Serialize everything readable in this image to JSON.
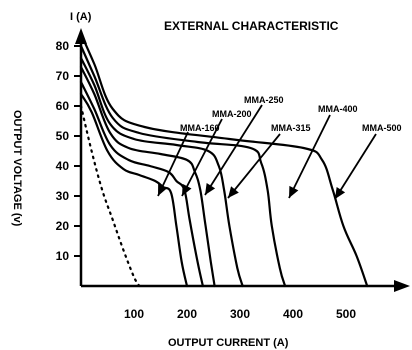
{
  "chart_data": {
    "type": "line",
    "title": "EXTERNAL CHARACTERISTIC",
    "y_axis_unit_label": "I (A)",
    "xlabel": "OUTPUT CURRENT (A)",
    "ylabel": "OUTPUT VOLTAGE (v)",
    "xlim": [
      0,
      600
    ],
    "ylim": [
      0,
      85
    ],
    "x_ticks": [
      100,
      200,
      300,
      400,
      500
    ],
    "y_ticks": [
      10,
      20,
      30,
      40,
      50,
      60,
      70,
      80
    ],
    "grid": false,
    "series": [
      {
        "name": "MMA-160",
        "points": [
          [
            0,
            64
          ],
          [
            20,
            58
          ],
          [
            50,
            45
          ],
          [
            80,
            39
          ],
          [
            110,
            37
          ],
          [
            140,
            35
          ],
          [
            155,
            33
          ],
          [
            170,
            31
          ],
          [
            180,
            20
          ],
          [
            190,
            8
          ],
          [
            200,
            0
          ]
        ]
      },
      {
        "name": "MMA-200",
        "points": [
          [
            0,
            68
          ],
          [
            25,
            59
          ],
          [
            55,
            47
          ],
          [
            90,
            42
          ],
          [
            130,
            40
          ],
          [
            165,
            38
          ],
          [
            180,
            35
          ],
          [
            195,
            32
          ],
          [
            205,
            22
          ],
          [
            220,
            8
          ],
          [
            230,
            0
          ]
        ]
      },
      {
        "name": "MMA-250",
        "points": [
          [
            0,
            73
          ],
          [
            25,
            64
          ],
          [
            55,
            51
          ],
          [
            90,
            46
          ],
          [
            150,
            44
          ],
          [
            200,
            42
          ],
          [
            215,
            38
          ],
          [
            225,
            32
          ],
          [
            235,
            20
          ],
          [
            245,
            8
          ],
          [
            252,
            0
          ]
        ]
      },
      {
        "name": "MMA-315",
        "points": [
          [
            0,
            76
          ],
          [
            25,
            67
          ],
          [
            55,
            54
          ],
          [
            100,
            49
          ],
          [
            180,
            47
          ],
          [
            240,
            45
          ],
          [
            260,
            40
          ],
          [
            270,
            32
          ],
          [
            280,
            20
          ],
          [
            295,
            6
          ],
          [
            305,
            0
          ]
        ]
      },
      {
        "name": "MMA-400",
        "points": [
          [
            0,
            80
          ],
          [
            25,
            70
          ],
          [
            60,
            56
          ],
          [
            110,
            51
          ],
          [
            220,
            48
          ],
          [
            320,
            46
          ],
          [
            340,
            41
          ],
          [
            352,
            32
          ],
          [
            360,
            20
          ],
          [
            375,
            6
          ],
          [
            385,
            0
          ]
        ]
      },
      {
        "name": "MMA-500",
        "points": [
          [
            0,
            84
          ],
          [
            25,
            74
          ],
          [
            60,
            59
          ],
          [
            120,
            53
          ],
          [
            280,
            49
          ],
          [
            420,
            46
          ],
          [
            455,
            42
          ],
          [
            475,
            32
          ],
          [
            495,
            20
          ],
          [
            520,
            10
          ],
          [
            540,
            0
          ]
        ]
      }
    ],
    "dotted_curve": [
      [
        0,
        60
      ],
      [
        20,
        45
      ],
      [
        40,
        32
      ],
      [
        60,
        22
      ],
      [
        80,
        12
      ],
      [
        100,
        3
      ],
      [
        110,
        0
      ]
    ]
  }
}
